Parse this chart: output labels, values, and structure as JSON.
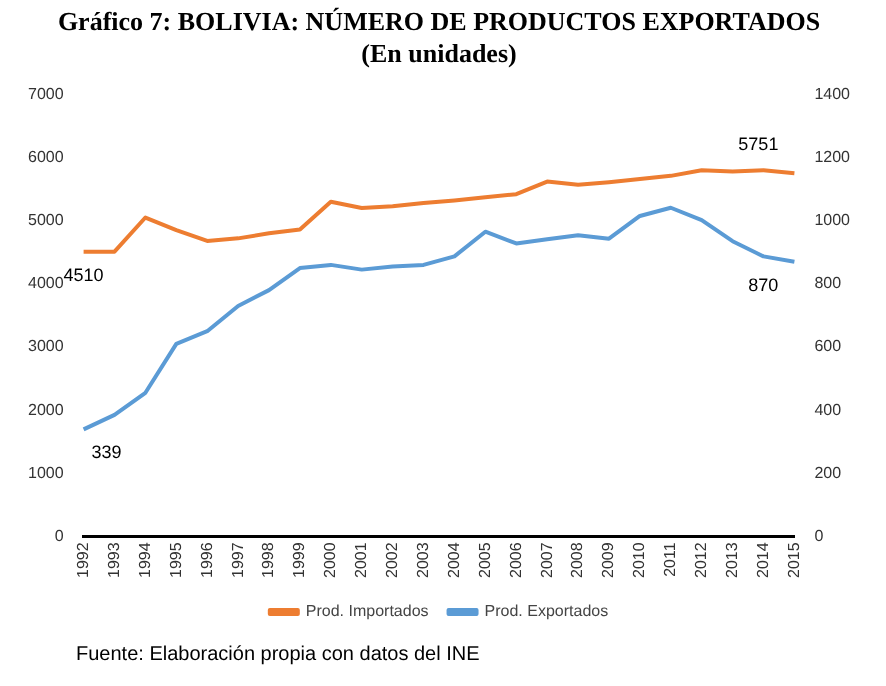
{
  "chart_data": {
    "type": "line",
    "title": "Gráfico 7: BOLIVIA: NÚMERO DE PRODUCTOS EXPORTADOS",
    "subtitle": "(En unidades)",
    "categories": [
      "1992",
      "1993",
      "1994",
      "1995",
      "1996",
      "1997",
      "1998",
      "1999",
      "2000",
      "2001",
      "2002",
      "2003",
      "2004",
      "2005",
      "2006",
      "2007",
      "2008",
      "2009",
      "2010",
      "2011",
      "2012",
      "2013",
      "2014",
      "2015"
    ],
    "series": [
      {
        "name": "Prod. Importados",
        "color": "#ed7d31",
        "values": [
          4510,
          4510,
          5050,
          4850,
          4680,
          4720,
          4800,
          4860,
          5300,
          5200,
          5230,
          5280,
          5320,
          5370,
          5420,
          5620,
          5570,
          5610,
          5660,
          5710,
          5800,
          5780,
          5800,
          5751
        ],
        "value_labels": [
          "4510",
          null,
          null,
          null,
          null,
          null,
          null,
          null,
          null,
          null,
          null,
          null,
          null,
          null,
          null,
          null,
          null,
          null,
          null,
          null,
          null,
          null,
          null,
          "5751"
        ]
      },
      {
        "name": "Prod. Exportados",
        "color": "#5b9bd5",
        "axis": "y2",
        "values": [
          339,
          385,
          455,
          610,
          650,
          730,
          780,
          850,
          860,
          845,
          855,
          860,
          887,
          965,
          928,
          941,
          954,
          943,
          1015,
          1041,
          1002,
          935,
          887,
          870
        ],
        "value_labels": [
          "339",
          null,
          null,
          null,
          null,
          null,
          null,
          null,
          null,
          null,
          null,
          null,
          null,
          null,
          null,
          null,
          null,
          null,
          null,
          null,
          null,
          null,
          null,
          "870"
        ]
      }
    ],
    "ylim": [
      0,
      7000
    ],
    "yticks": [
      0,
      1000,
      2000,
      3000,
      4000,
      5000,
      6000,
      7000
    ],
    "y2lim": [
      0,
      1400
    ],
    "y2ticks": [
      0,
      200,
      400,
      600,
      800,
      1000,
      1200,
      1400
    ],
    "grid": false,
    "legend": "bottom",
    "marker": "none",
    "line_style": "solid",
    "annotations": [
      "Fuente: Elaboración propia con datos del INE"
    ]
  }
}
